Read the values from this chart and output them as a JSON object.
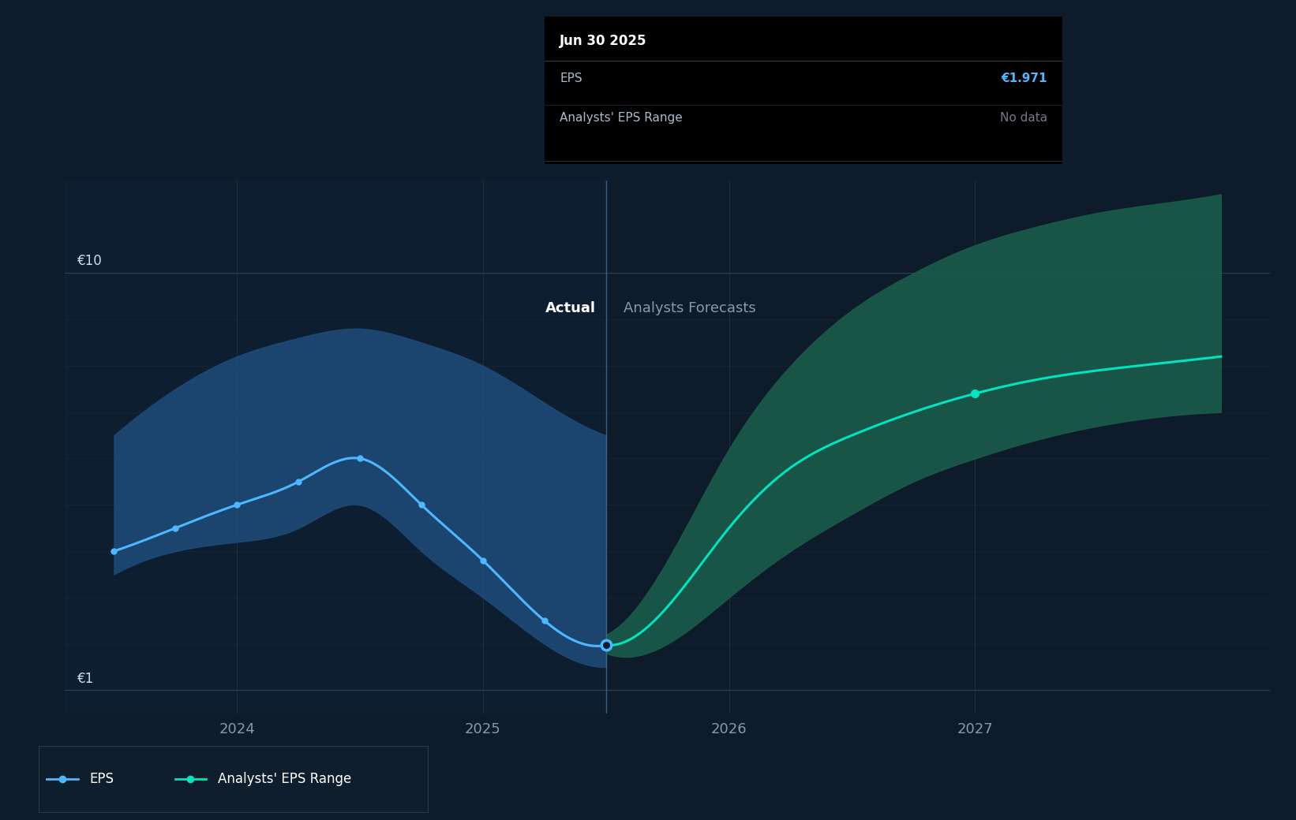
{
  "bg_color": "#0d1b2a",
  "plot_bg_color": "#0d1b2a",
  "ylabel_10": "€10",
  "ylabel_1": "€1",
  "actual_label": "Actual",
  "forecast_label": "Analysts Forecasts",
  "divider_x": 2025.5,
  "eps_color": "#4db8ff",
  "forecast_line_color": "#00e5c0",
  "forecast_band_color": "#1a5c4a",
  "actual_band_color": "#1e4d7a",
  "grid_color": "#2a3a4a",
  "tick_color": "#8899aa",
  "tooltip_bg": "#000000",
  "tooltip_title": "Jun 30 2025",
  "tooltip_eps_label": "EPS",
  "tooltip_eps_value": "€1.971",
  "tooltip_range_label": "Analysts' EPS Range",
  "tooltip_range_value": "No data",
  "tooltip_eps_color": "#4db8ff",
  "tooltip_range_color": "#777788",
  "eps_x": [
    2023.5,
    2023.75,
    2024.0,
    2024.25,
    2024.5,
    2024.75,
    2025.0,
    2025.25,
    2025.5
  ],
  "eps_y": [
    4.0,
    4.5,
    5.0,
    5.5,
    6.0,
    5.0,
    3.8,
    2.5,
    1.971
  ],
  "eps_dots": [
    2023.5,
    2023.75,
    2024.0,
    2024.25,
    2024.5,
    2024.75,
    2025.0,
    2025.25
  ],
  "actual_band_upper": [
    6.5,
    7.5,
    8.2,
    8.6,
    8.8,
    8.5,
    8.0,
    7.2,
    6.5
  ],
  "actual_band_lower": [
    3.5,
    4.0,
    4.2,
    4.5,
    5.0,
    4.0,
    3.0,
    2.0,
    1.5
  ],
  "forecast_x": [
    2025.5,
    2025.75,
    2026.0,
    2026.25,
    2026.5,
    2026.75,
    2027.0,
    2027.25,
    2027.5,
    2027.75,
    2028.0
  ],
  "forecast_y": [
    1.971,
    2.8,
    4.5,
    5.8,
    6.5,
    7.0,
    7.4,
    7.7,
    7.9,
    8.05,
    8.2
  ],
  "forecast_upper": [
    2.2,
    3.8,
    6.2,
    8.0,
    9.2,
    10.0,
    10.6,
    11.0,
    11.3,
    11.5,
    11.7
  ],
  "forecast_lower": [
    1.8,
    2.0,
    3.0,
    4.0,
    4.8,
    5.5,
    6.0,
    6.4,
    6.7,
    6.9,
    7.0
  ],
  "forecast_dot_x": 2027.0,
  "xlim": [
    2023.3,
    2028.2
  ],
  "ylim": [
    0.5,
    12.0
  ],
  "xticks": [
    2024,
    2025,
    2026,
    2027
  ],
  "xtick_labels": [
    "2024",
    "2025",
    "2026",
    "2027"
  ],
  "hlines": [
    1.0,
    10.0
  ],
  "hlines_minor": [
    2.0,
    3.0,
    4.0,
    5.0,
    6.0,
    7.0,
    8.0,
    9.0
  ]
}
